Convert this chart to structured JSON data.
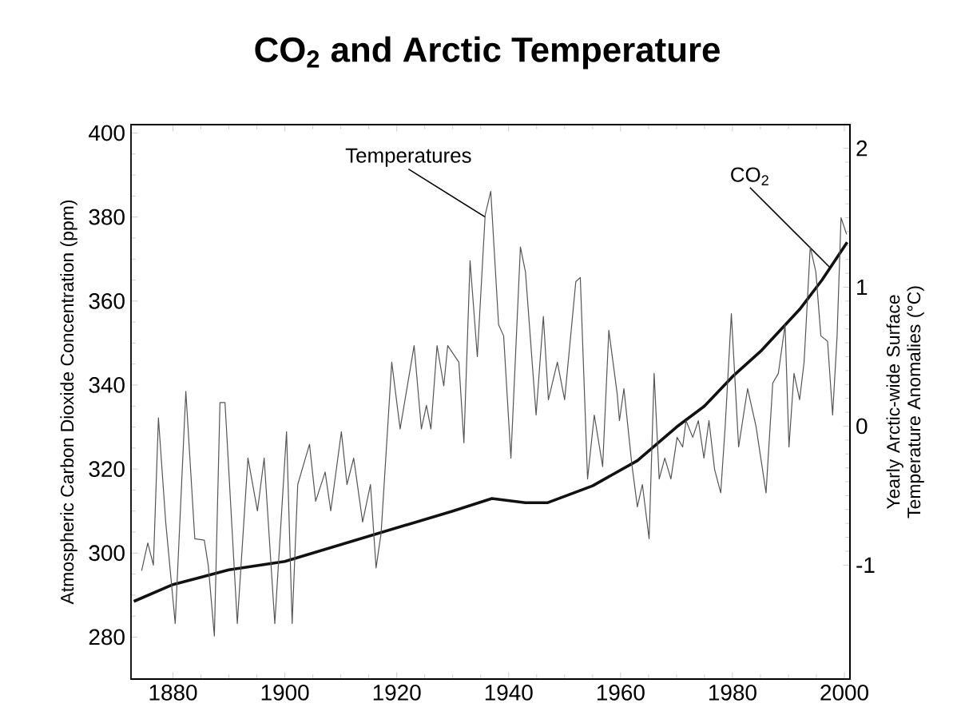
{
  "chart_data": {
    "type": "line",
    "title": "CO$_{2}$ and Arctic Temperature",
    "ylabel": "Atmospheric Carbon Dioxide Concentration (ppm)",
    "y2label": "Yearly Arctic-wide Surface Temperature Anomalies (°C)",
    "xlim": [
      1872.5,
      2001
    ],
    "xticks": [
      1880,
      1900,
      1920,
      1940,
      1960,
      1980,
      2000
    ],
    "ylim": [
      270,
      402
    ],
    "yticks": [
      280,
      300,
      320,
      340,
      360,
      380,
      400
    ],
    "y2lim": [
      -1.82,
      2.17
    ],
    "y2ticks": [
      -1,
      0,
      1,
      2
    ],
    "series": [
      {
        "color": "#555555",
        "axis": "y2",
        "x": [
          1874.4,
          1875.5,
          1876.5,
          1877.4,
          1878.7,
          1880.4,
          1882.3,
          1883.9,
          1885.6,
          1886.3,
          1887.4,
          1888.4,
          1889.3,
          1891.5,
          1893.4,
          1895.1,
          1896.3,
          1898.2,
          1900.3,
          1901.3,
          1902.3,
          1904.4,
          1905.5,
          1907.2,
          1908.2,
          1910.1,
          1911.1,
          1912.3,
          1913.9,
          1915.3,
          1916.3,
          1917.2,
          1919.1,
          1920.6,
          1923.1,
          1924.4,
          1925.3,
          1926.1,
          1927.2,
          1928.4,
          1929.1,
          1931.1,
          1932.0,
          1933.1,
          1934.4,
          1935.8,
          1936.8,
          1938.2,
          1939.1,
          1940.4,
          1942.1,
          1943.0,
          1944.9,
          1946.2,
          1947.1,
          1948.7,
          1950.0,
          1952.0,
          1952.8,
          1954.1,
          1955.3,
          1956.8,
          1957.9,
          1959.4,
          1959.8,
          1960.6,
          1962.0,
          1963.0,
          1963.9,
          1965.1,
          1966.0,
          1966.9,
          1967.9,
          1969.0,
          1970.1,
          1971.1,
          1971.7,
          1972.9,
          1973.9,
          1974.9,
          1975.8,
          1976.8,
          1977.9,
          1978.7,
          1979.8,
          1981.1,
          1982.7,
          1984.2,
          1986.0,
          1987.2,
          1988.2,
          1989.4,
          1990.1,
          1991.0,
          1992.0,
          1992.8,
          1993.9,
          1994.9,
          1995.8,
          1997.0,
          1997.9,
          1998.7,
          1999.4,
          2000.4
        ],
        "values": [
          -1.04,
          -0.84,
          -1.0,
          0.06,
          -0.69,
          -1.42,
          0.25,
          -0.81,
          -0.82,
          -1.0,
          -1.51,
          0.17,
          0.17,
          -1.42,
          -0.23,
          -0.61,
          -0.23,
          -1.42,
          -0.04,
          -1.42,
          -0.42,
          -0.13,
          -0.54,
          -0.33,
          -0.61,
          -0.04,
          -0.42,
          -0.23,
          -0.69,
          -0.42,
          -1.02,
          -0.77,
          0.46,
          -0.02,
          0.58,
          -0.02,
          0.15,
          -0.02,
          0.58,
          0.29,
          0.58,
          0.46,
          -0.12,
          1.19,
          0.5,
          1.52,
          1.69,
          0.73,
          0.65,
          -0.23,
          1.29,
          1.11,
          0.08,
          0.79,
          0.19,
          0.46,
          0.19,
          1.04,
          1.07,
          -0.38,
          0.08,
          -0.29,
          0.69,
          0.23,
          0.04,
          0.27,
          -0.27,
          -0.58,
          -0.42,
          -0.81,
          0.38,
          -0.38,
          -0.23,
          -0.38,
          -0.08,
          -0.15,
          0.04,
          -0.08,
          0.04,
          -0.23,
          0.04,
          -0.31,
          -0.48,
          0.0,
          0.81,
          -0.15,
          0.27,
          0.0,
          -0.48,
          0.31,
          0.38,
          0.73,
          -0.15,
          0.38,
          0.19,
          0.46,
          1.29,
          1.11,
          0.65,
          0.61,
          0.08,
          0.65,
          1.5,
          1.38
        ]
      },
      {
        "color": "#111111",
        "axis": "y",
        "x": [
          1873,
          1880,
          1890,
          1900,
          1910,
          1920,
          1930,
          1937,
          1943,
          1947,
          1955,
          1963,
          1970,
          1975,
          1980,
          1985,
          1992,
          1996,
          2000.5
        ],
        "values": [
          288.5,
          292.5,
          296,
          298,
          302,
          306,
          310,
          313,
          312,
          312,
          316,
          322,
          330,
          335,
          342,
          348,
          358,
          365,
          374
        ]
      }
    ],
    "annotations": [
      {
        "text": "Temperatures",
        "x": 1935.8,
        "y": 380
      },
      {
        "text": "CO$_{2}$",
        "x": 1997.4,
        "y": 368
      }
    ]
  }
}
